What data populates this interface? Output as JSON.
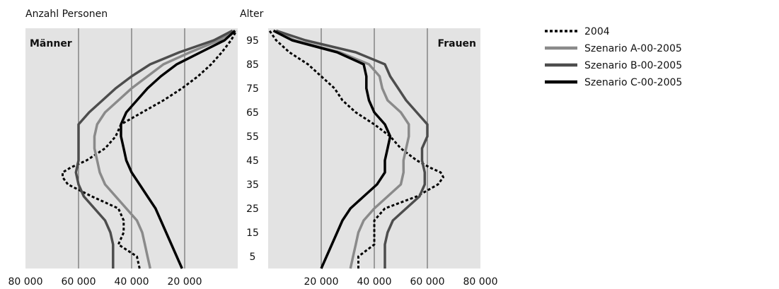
{
  "chart_data": {
    "type": "line",
    "ylabel_left": "Anzahl Personen",
    "ylabel_center": "Alter",
    "panels": [
      {
        "name": "Männer",
        "side": "left"
      },
      {
        "name": "Frauen",
        "side": "right"
      }
    ],
    "age_ticks": [
      "95",
      "85",
      "75",
      "65",
      "55",
      "45",
      "35",
      "25",
      "15",
      "5"
    ],
    "x_ticks_left": [
      "80 000",
      "60 000",
      "40 000",
      "20 000"
    ],
    "x_ticks_right": [
      "20 000",
      "40 000",
      "60 000",
      "80 000"
    ],
    "xlim": [
      0,
      80000
    ],
    "ylim": [
      0,
      100
    ],
    "grid_x": [
      20000,
      40000,
      60000
    ],
    "legend": {
      "placement": "right"
    },
    "series": [
      {
        "name": "2004",
        "style": "dotted",
        "color": "#000000",
        "ages": [
          0,
          5,
          10,
          15,
          20,
          25,
          30,
          35,
          38,
          40,
          42,
          45,
          50,
          55,
          60,
          65,
          70,
          75,
          80,
          85,
          90,
          95,
          99
        ],
        "male": [
          37000,
          38000,
          45000,
          43000,
          43000,
          45000,
          55000,
          64000,
          66000,
          66000,
          63000,
          57000,
          50000,
          46000,
          44000,
          36000,
          28000,
          21000,
          15000,
          10000,
          6000,
          2500,
          500
        ],
        "female": [
          34000,
          34000,
          40000,
          40000,
          40000,
          44000,
          56000,
          64000,
          66000,
          65000,
          61000,
          56000,
          50000,
          46000,
          40000,
          33000,
          28000,
          25000,
          20000,
          15000,
          8000,
          3000,
          500
        ]
      },
      {
        "name": "Szenario A-00-2005",
        "style": "solid",
        "color": "#8a8a8a",
        "ages": [
          0,
          5,
          10,
          15,
          20,
          25,
          30,
          35,
          40,
          45,
          50,
          55,
          60,
          65,
          70,
          75,
          80,
          85,
          90,
          95,
          99
        ],
        "male": [
          33000,
          34000,
          35000,
          36000,
          38000,
          42000,
          46000,
          50000,
          52000,
          53000,
          54000,
          54000,
          53000,
          50000,
          45000,
          40000,
          34000,
          28000,
          18000,
          7000,
          1500
        ],
        "female": [
          31000,
          32000,
          33000,
          34000,
          36000,
          40000,
          45000,
          50000,
          51000,
          51000,
          52000,
          53000,
          53000,
          50000,
          45000,
          43000,
          42000,
          38000,
          27000,
          10000,
          2000
        ]
      },
      {
        "name": "Szenario B-00-2005",
        "style": "solid",
        "color": "#4d4d4d",
        "ages": [
          0,
          5,
          10,
          15,
          20,
          25,
          30,
          35,
          40,
          45,
          50,
          55,
          60,
          65,
          70,
          75,
          80,
          85,
          90,
          95,
          99
        ],
        "male": [
          47000,
          47000,
          47000,
          48000,
          50000,
          54000,
          58000,
          60000,
          61000,
          60000,
          60000,
          60000,
          60000,
          56000,
          51000,
          46000,
          40000,
          33000,
          22000,
          9000,
          2000
        ],
        "female": [
          44000,
          44000,
          44000,
          45000,
          47000,
          52000,
          57000,
          59000,
          59000,
          58000,
          58000,
          60000,
          60000,
          56000,
          52000,
          49000,
          46000,
          44000,
          33000,
          14000,
          3000
        ]
      },
      {
        "name": "Szenario C-00-2005",
        "style": "solid",
        "color": "#000000",
        "ages": [
          0,
          5,
          10,
          15,
          20,
          25,
          30,
          35,
          40,
          45,
          50,
          55,
          60,
          65,
          70,
          75,
          80,
          85,
          90,
          95,
          99
        ],
        "male": [
          21000,
          23000,
          25000,
          27000,
          29000,
          31000,
          34000,
          37000,
          40000,
          42000,
          43000,
          44000,
          44000,
          42000,
          38000,
          34000,
          29000,
          23000,
          14000,
          5000,
          1000
        ],
        "female": [
          20000,
          22000,
          24000,
          26000,
          28000,
          31000,
          36000,
          41000,
          44000,
          44000,
          45000,
          46000,
          44000,
          40000,
          38000,
          37000,
          37000,
          36000,
          26000,
          9000,
          2000
        ]
      }
    ]
  }
}
